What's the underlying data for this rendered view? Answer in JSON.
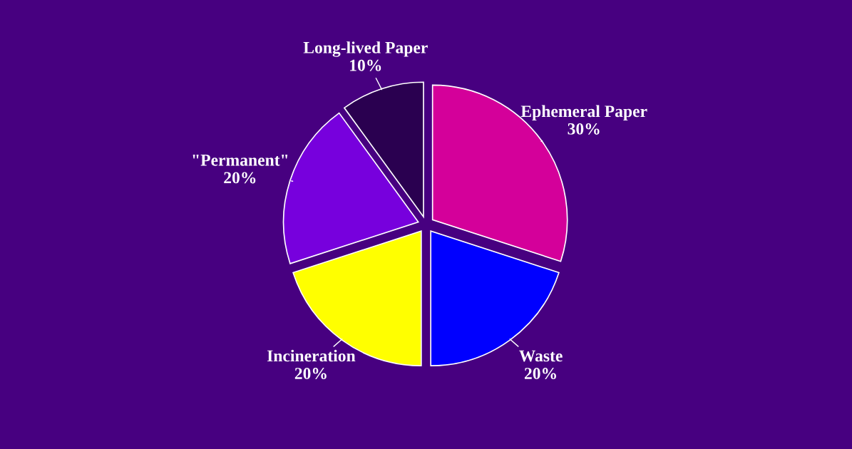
{
  "chart_data": {
    "type": "pie",
    "categories": [
      "Ephemeral Paper",
      "Waste",
      "Incineration",
      "\"Permanent\"",
      "Long-lived Paper"
    ],
    "values": [
      30,
      20,
      20,
      20,
      10
    ],
    "value_labels": [
      "30%",
      "20%",
      "20%",
      "20%",
      "10%"
    ],
    "colors": [
      "#d4009a",
      "#0000ff",
      "#ffff00",
      "#7700dd",
      "#2a0050"
    ],
    "legend": false
  }
}
